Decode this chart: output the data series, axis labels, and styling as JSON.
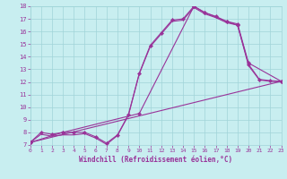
{
  "title": "",
  "xlabel": "Windchill (Refroidissement éolien,°C)",
  "ylabel": "",
  "xlim": [
    0,
    23
  ],
  "ylim": [
    7,
    18
  ],
  "yticks": [
    7,
    8,
    9,
    10,
    11,
    12,
    13,
    14,
    15,
    16,
    17,
    18
  ],
  "xticks": [
    0,
    1,
    2,
    3,
    4,
    5,
    6,
    7,
    8,
    9,
    10,
    11,
    12,
    13,
    14,
    15,
    16,
    17,
    18,
    19,
    20,
    21,
    22,
    23
  ],
  "bg_color": "#c8eef0",
  "grid_color": "#a0d4d8",
  "line_color": "#993399",
  "line1_x": [
    0,
    1,
    2,
    3,
    4,
    5,
    6,
    7,
    8,
    9,
    10,
    11,
    12,
    13,
    14,
    15,
    16,
    17,
    18,
    19,
    20,
    21,
    22,
    23
  ],
  "line1_y": [
    7.2,
    8.0,
    7.85,
    8.0,
    8.0,
    8.0,
    7.65,
    7.15,
    7.8,
    9.4,
    12.7,
    14.9,
    15.9,
    16.9,
    17.0,
    18.0,
    17.5,
    17.2,
    16.8,
    16.5,
    13.4,
    12.2,
    12.1,
    12.05
  ],
  "line2_x": [
    0,
    1,
    2,
    3,
    4,
    5,
    6,
    7,
    8,
    9,
    10,
    11,
    12,
    13,
    14,
    15,
    16,
    17,
    18,
    19,
    20,
    21,
    22,
    23
  ],
  "line2_y": [
    7.2,
    7.85,
    7.7,
    7.8,
    7.8,
    7.9,
    7.55,
    7.05,
    7.75,
    9.35,
    12.65,
    14.8,
    15.8,
    16.8,
    16.9,
    17.9,
    17.4,
    17.1,
    16.7,
    16.5,
    13.3,
    12.15,
    12.05,
    12.0
  ],
  "line3_x": [
    0,
    3,
    10,
    15,
    16,
    18,
    19,
    20,
    23
  ],
  "line3_y": [
    7.2,
    8.0,
    9.5,
    18.0,
    17.5,
    16.8,
    16.6,
    13.5,
    12.05
  ],
  "line4_x": [
    0,
    23
  ],
  "line4_y": [
    7.2,
    12.05
  ],
  "marker": "D",
  "markersize": 2.2,
  "linewidth": 0.8
}
